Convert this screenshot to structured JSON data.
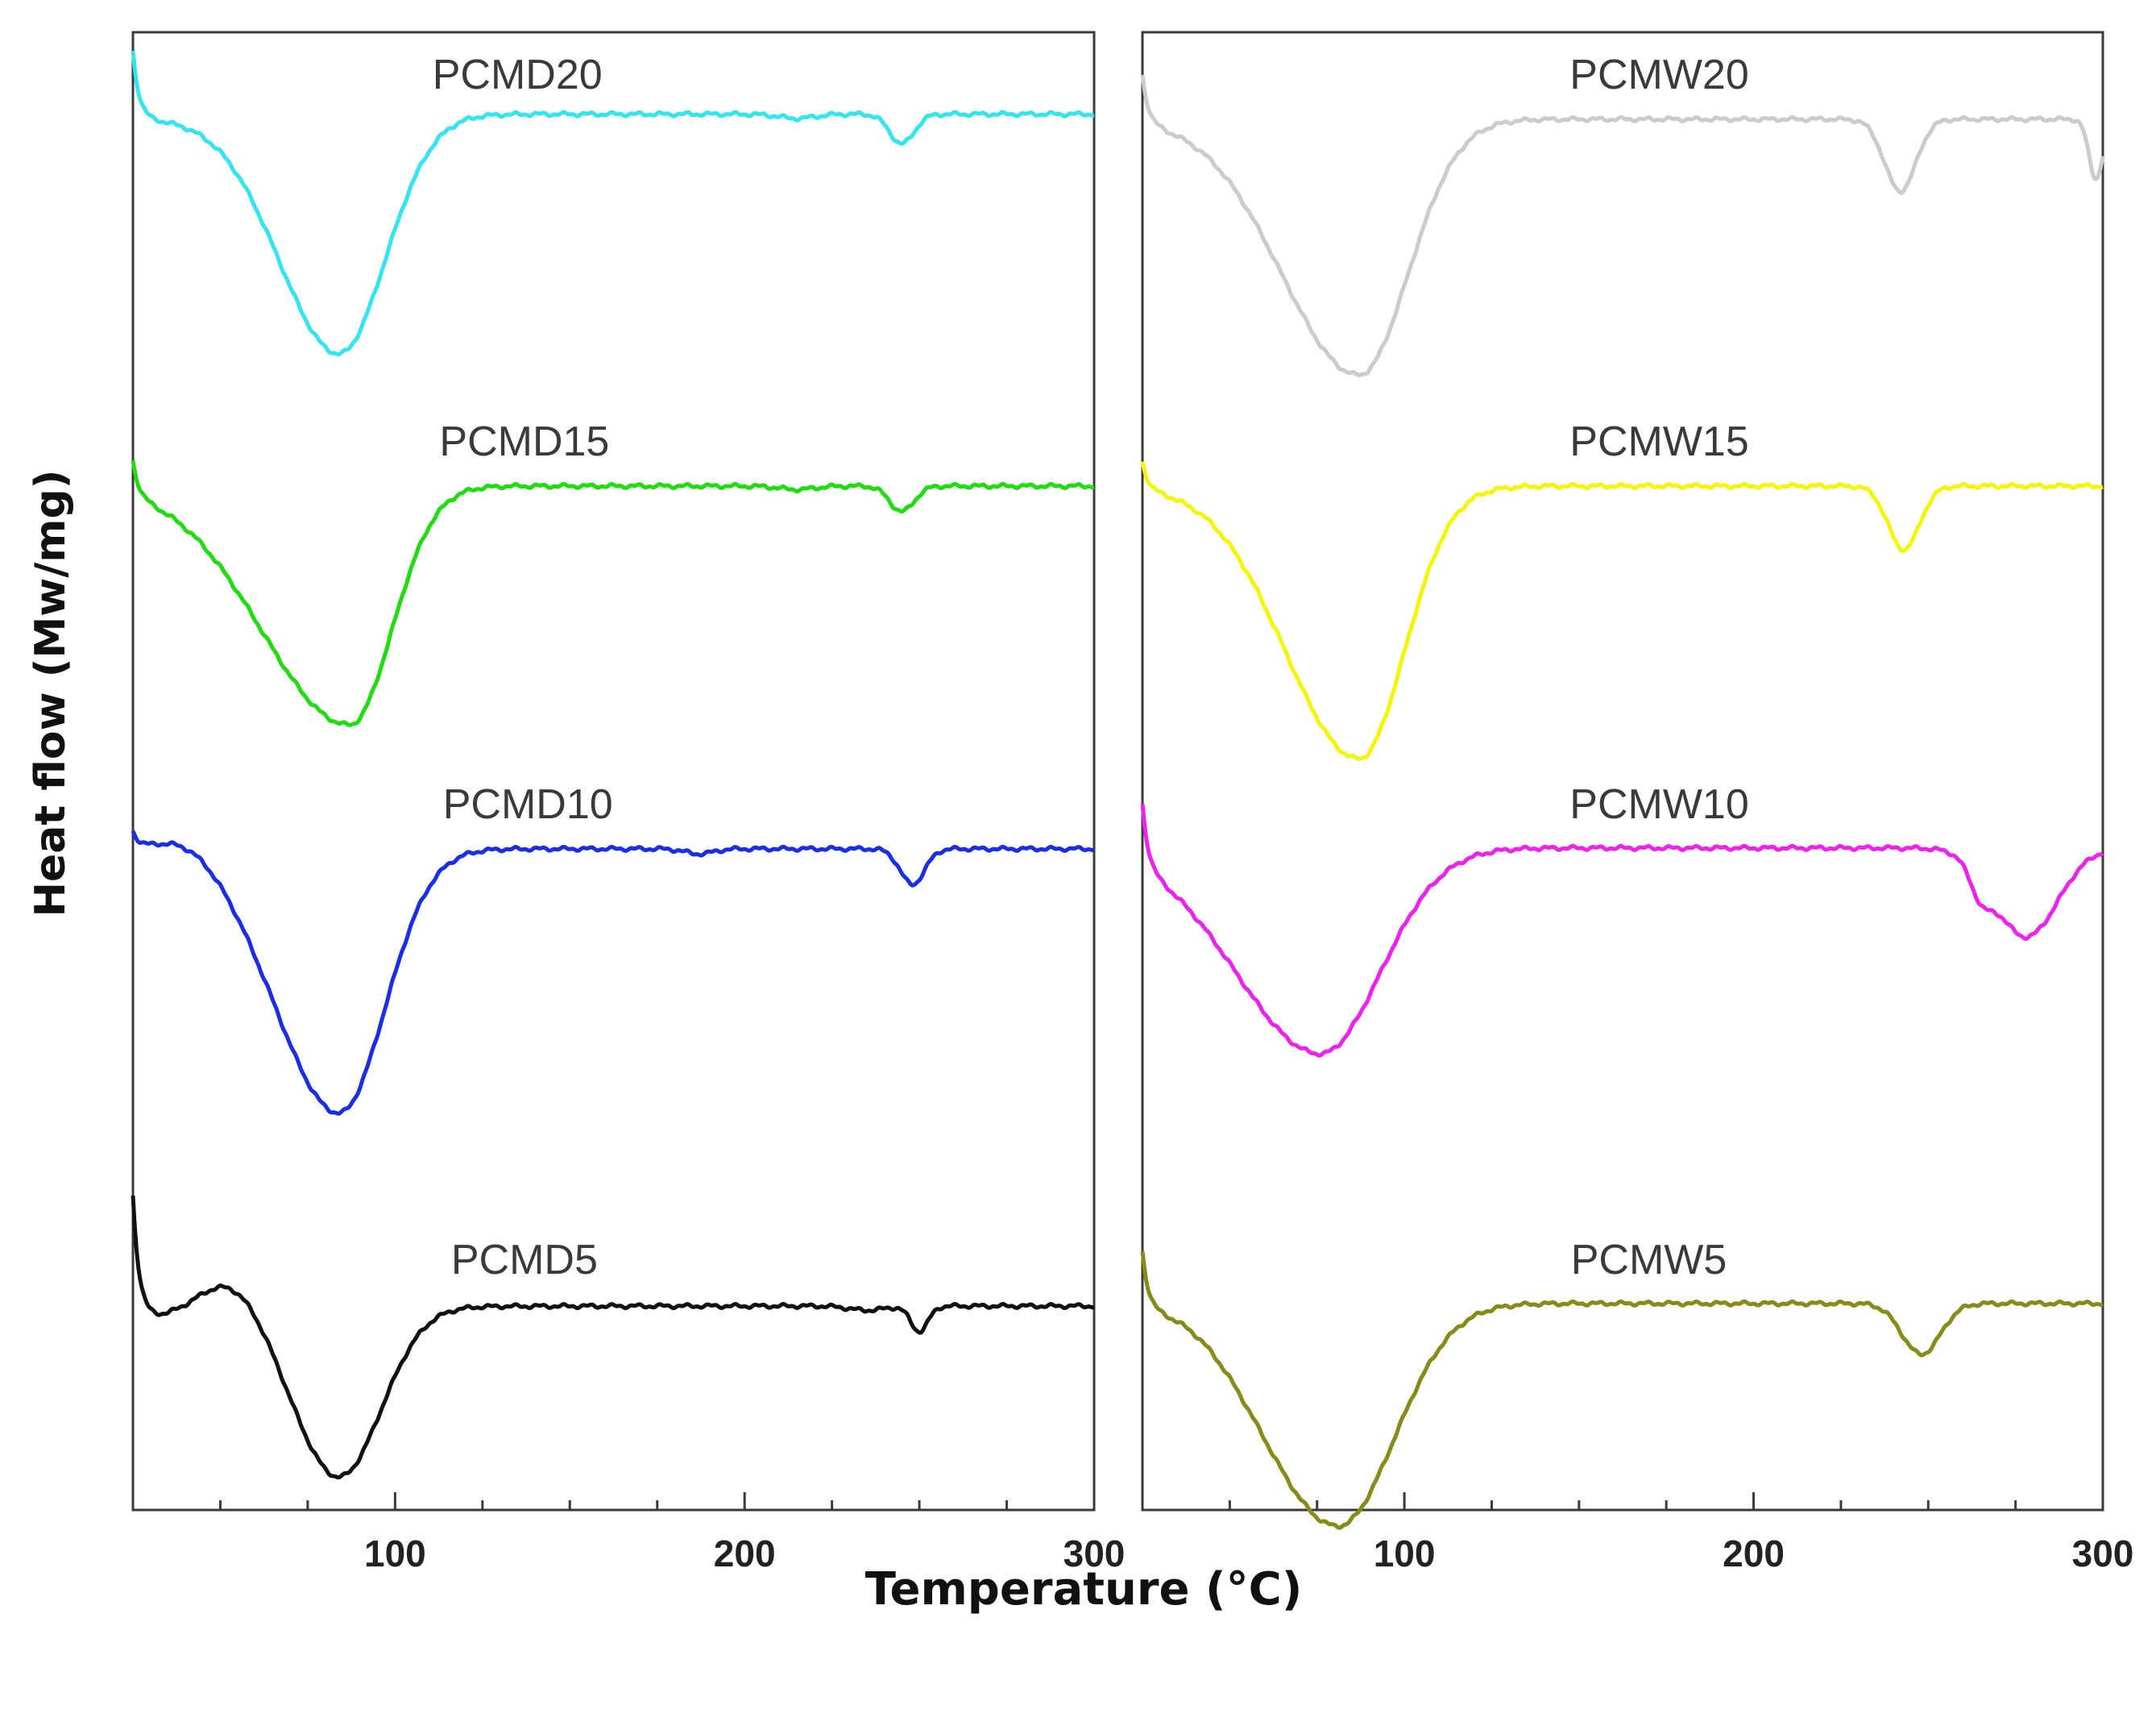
{
  "chart_data": {
    "type": "line",
    "ylabel": "Heat flow (Mw/mg)",
    "xlabel": "Temperature (°C)",
    "panels": [
      {
        "id": "left",
        "xlim": [
          25,
          300
        ],
        "xticks": [
          100,
          200,
          300
        ],
        "xtick_labels": [
          "100",
          "200",
          "300"
        ],
        "series": [
          {
            "name": "PCMD20",
            "color": "#33e5f0",
            "label_x": 135,
            "label_above": 0.55,
            "shape": {
              "start": 0.82,
              "base": 0.0,
              "bump": 0.02,
              "bumpAt": 32,
              "peakT": 84,
              "depth": 2.75,
              "wL": 17,
              "wR": 13,
              "onset": 28,
              "end": 112,
              "end_val": 0.08,
              "dips": [
                [
                  245,
                  0.35,
                  3.5
                ],
                [
                  215,
                  0.05,
                  5
                ]
              ]
            }
          },
          {
            "name": "PCMD15",
            "color": "#20dd10",
            "label_x": 137,
            "label_above": 0.55,
            "shape": {
              "start": 0.45,
              "base": 0.0,
              "bump": 0.0,
              "bumpAt": 32,
              "peakT": 87,
              "depth": 2.8,
              "wL": 25,
              "wR": 12,
              "onset": 30,
              "end": 115,
              "end_val": 0.02,
              "dips": [
                [
                  245,
                  0.3,
                  3.5
                ],
                [
                  215,
                  0.04,
                  5
                ]
              ]
            }
          },
          {
            "name": "PCMD10",
            "color": "#1a2ee6",
            "label_x": 138,
            "label_above": 0.55,
            "shape": {
              "start": 0.2,
              "base": 0.0,
              "bump": 0.18,
              "bumpAt": 40,
              "peakT": 84,
              "depth": 3.1,
              "wL": 18,
              "wR": 13,
              "onset": 30,
              "end": 115,
              "end_val": 0.02,
              "dips": [
                [
                  248,
                  0.42,
                  3.5
                ],
                [
                  187,
                  0.06,
                  4
                ]
              ]
            }
          },
          {
            "name": "PCMD5",
            "color": "#111111",
            "label_x": 137,
            "label_above": 0.55,
            "shape": {
              "start": 1.3,
              "base": -0.2,
              "bump": 0.38,
              "bumpAt": 53,
              "peakT": 84,
              "depth": 2.0,
              "wL": 13,
              "wR": 12,
              "onset": 55,
              "end": 112,
              "end_val": 0.0,
              "dips": [
                [
                  250,
                  0.3,
                  2.5
                ],
                [
                  235,
                  0.05,
                  5
                ]
              ]
            }
          }
        ]
      },
      {
        "id": "right",
        "xlim": [
          25,
          300
        ],
        "xticks": [
          100,
          200,
          300
        ],
        "xtick_labels": [
          "100",
          "200",
          "300"
        ],
        "series": [
          {
            "name": "PCMW20",
            "color": "#cbcbcb",
            "label_x": 173,
            "label_above": 0.55,
            "shape": {
              "start": 0.6,
              "base": 0.0,
              "bump": 0.0,
              "bumpAt": 32,
              "peakT": 87,
              "depth": 3.0,
              "wL": 22,
              "wR": 14,
              "onset": 30,
              "end": 125,
              "end_val": 0.02,
              "dips": [
                [
                  242,
                  0.85,
                  4.5
                ],
                [
                  298,
                  0.7,
                  2
                ]
              ]
            }
          },
          {
            "name": "PCMW15",
            "color": "#f5f50a",
            "label_x": 173,
            "label_above": 0.55,
            "shape": {
              "start": 0.35,
              "base": 0.0,
              "bump": 0.0,
              "bumpAt": 32,
              "peakT": 87,
              "depth": 3.2,
              "wL": 21,
              "wR": 13,
              "onset": 30,
              "end": 125,
              "end_val": 0.02,
              "dips": [
                [
                  243,
                  0.75,
                  4.5
                ]
              ]
            }
          },
          {
            "name": "PCMW10",
            "color": "#ee22ee",
            "label_x": 173,
            "label_above": 0.55,
            "shape": {
              "start": 0.8,
              "base": 0.0,
              "bump": 0.0,
              "bumpAt": 32,
              "peakT": 76,
              "depth": 2.4,
              "wL": 24,
              "wR": 17,
              "onset": 30,
              "end": 120,
              "end_val": 0.03,
              "dips": [
                [
                  278,
                  1.05,
                  9
                ],
                [
                  265,
                  0.3,
                  3
                ]
              ]
            }
          },
          {
            "name": "PCMW5",
            "color": "#8a8a18",
            "label_x": 170,
            "label_above": 0.55,
            "shape": {
              "start": 0.7,
              "base": 0.0,
              "bump": 0.05,
              "bumpAt": 38,
              "peakT": 81,
              "depth": 2.6,
              "wL": 21,
              "wR": 16,
              "onset": 30,
              "end": 122,
              "end_val": 0.03,
              "dips": [
                [
                  248,
                  0.6,
                  5.5
                ]
              ]
            }
          }
        ]
      }
    ]
  }
}
